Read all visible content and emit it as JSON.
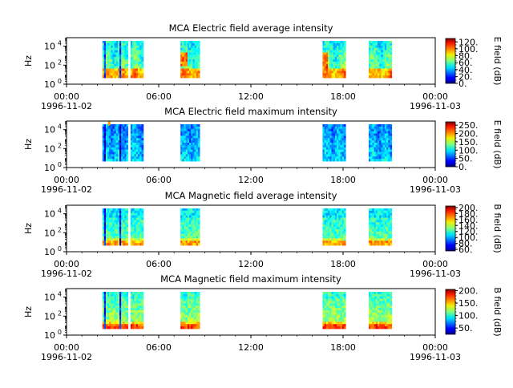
{
  "x_ticks": [
    {
      "time": "00:00",
      "date": "1996-11-02"
    },
    {
      "time": "06:00",
      "date": ""
    },
    {
      "time": "12:00",
      "date": ""
    },
    {
      "time": "18:00",
      "date": ""
    },
    {
      "time": "00:00",
      "date": "1996-11-03"
    }
  ],
  "colormap": "jet",
  "chart_data": [
    {
      "type": "heatmap",
      "title": "MCA  Electric field average intensity",
      "ylabel": "Hz",
      "y_scale": "log",
      "y_ticks": [
        {
          "value": 1,
          "base": "10",
          "exp": "0"
        },
        {
          "value": 100,
          "base": "10",
          "exp": "2"
        },
        {
          "value": 10000,
          "base": "10",
          "exp": "4"
        }
      ],
      "xlim": [
        "1996-11-02 00:00",
        "1996-11-03 00:00"
      ],
      "colorbar_label": "E field (dB)",
      "colorbar_range": [
        0,
        130
      ],
      "colorbar_ticks": [
        "0.",
        "20.",
        "40.",
        "60.",
        "80.",
        "100.",
        "120."
      ],
      "data_intervals": [
        {
          "start": "1996-11-02 02:20",
          "end": "1996-11-02 04:00"
        },
        {
          "start": "1996-11-02 04:10",
          "end": "1996-11-02 05:00"
        },
        {
          "start": "1996-11-02 07:25",
          "end": "1996-11-02 08:40"
        },
        {
          "start": "1996-11-02 16:40",
          "end": "1996-11-02 18:10"
        },
        {
          "start": "1996-11-02 19:40",
          "end": "1996-11-02 21:10"
        }
      ]
    },
    {
      "type": "heatmap",
      "title": "MCA  Electric field maximum intensity",
      "ylabel": "Hz",
      "y_scale": "log",
      "y_ticks": [
        {
          "value": 1,
          "base": "10",
          "exp": "0"
        },
        {
          "value": 100,
          "base": "10",
          "exp": "2"
        },
        {
          "value": 10000,
          "base": "10",
          "exp": "4"
        }
      ],
      "xlim": [
        "1996-11-02 00:00",
        "1996-11-03 00:00"
      ],
      "colorbar_label": "E field (dB)",
      "colorbar_range": [
        0,
        270
      ],
      "colorbar_ticks": [
        "0.",
        "50.",
        "100.",
        "150.",
        "200.",
        "250."
      ],
      "data_intervals": [
        {
          "start": "1996-11-02 02:20",
          "end": "1996-11-02 04:00"
        },
        {
          "start": "1996-11-02 04:10",
          "end": "1996-11-02 05:00"
        },
        {
          "start": "1996-11-02 07:25",
          "end": "1996-11-02 08:40"
        },
        {
          "start": "1996-11-02 16:40",
          "end": "1996-11-02 18:10"
        },
        {
          "start": "1996-11-02 19:40",
          "end": "1996-11-02 21:10"
        }
      ]
    },
    {
      "type": "heatmap",
      "title": "MCA  Magnetic field average intensity",
      "ylabel": "Hz",
      "y_scale": "log",
      "y_ticks": [
        {
          "value": 1,
          "base": "10",
          "exp": "0"
        },
        {
          "value": 100,
          "base": "10",
          "exp": "2"
        },
        {
          "value": 10000,
          "base": "10",
          "exp": "4"
        }
      ],
      "xlim": [
        "1996-11-02 00:00",
        "1996-11-03 00:00"
      ],
      "colorbar_label": "B field (dB)",
      "colorbar_range": [
        55,
        205
      ],
      "colorbar_ticks": [
        "60.",
        "80.",
        "100.",
        "120.",
        "140.",
        "160.",
        "180.",
        "200."
      ],
      "data_intervals": [
        {
          "start": "1996-11-02 02:20",
          "end": "1996-11-02 04:00"
        },
        {
          "start": "1996-11-02 04:10",
          "end": "1996-11-02 05:00"
        },
        {
          "start": "1996-11-02 07:25",
          "end": "1996-11-02 08:40"
        },
        {
          "start": "1996-11-02 16:40",
          "end": "1996-11-02 18:10"
        },
        {
          "start": "1996-11-02 19:40",
          "end": "1996-11-02 21:10"
        }
      ]
    },
    {
      "type": "heatmap",
      "title": "MCA  Magnetic field maximum intensity",
      "ylabel": "Hz",
      "y_scale": "log",
      "y_ticks": [
        {
          "value": 1,
          "base": "10",
          "exp": "0"
        },
        {
          "value": 100,
          "base": "10",
          "exp": "2"
        },
        {
          "value": 10000,
          "base": "10",
          "exp": "4"
        }
      ],
      "xlim": [
        "1996-11-02 00:00",
        "1996-11-03 00:00"
      ],
      "colorbar_label": "B field (dB)",
      "colorbar_range": [
        25,
        205
      ],
      "colorbar_ticks": [
        "50.",
        "100.",
        "150.",
        "200."
      ],
      "data_intervals": [
        {
          "start": "1996-11-02 02:20",
          "end": "1996-11-02 04:00"
        },
        {
          "start": "1996-11-02 04:10",
          "end": "1996-11-02 05:00"
        },
        {
          "start": "1996-11-02 07:25",
          "end": "1996-11-02 08:40"
        },
        {
          "start": "1996-11-02 16:40",
          "end": "1996-11-02 18:10"
        },
        {
          "start": "1996-11-02 19:40",
          "end": "1996-11-02 21:10"
        }
      ]
    }
  ]
}
